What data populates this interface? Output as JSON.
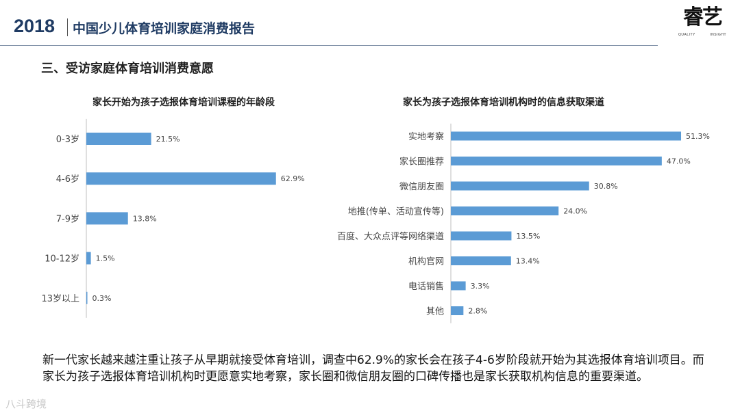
{
  "header": {
    "year": "2018",
    "report_title": "中国少儿体育培训家庭消费报告",
    "logo_mark": "睿艺",
    "logo_sub_left": "QUALITY",
    "logo_sub_right": "INSIGHT"
  },
  "section_title": "三、受访家庭体育培训消费意愿",
  "chart_data": [
    {
      "type": "bar",
      "orientation": "horizontal",
      "title": "家长开始为孩子选报体育培训课程的年龄段",
      "categories": [
        "0-3岁",
        "4-6岁",
        "7-9岁",
        "10-12岁",
        "13岁以上"
      ],
      "values": [
        21.5,
        62.9,
        13.8,
        1.5,
        0.3
      ],
      "value_labels": [
        "21.5%",
        "62.9%",
        "13.8%",
        "1.5%",
        "0.3%"
      ],
      "unit": "%",
      "color": "#5b9bd5"
    },
    {
      "type": "bar",
      "orientation": "horizontal",
      "title": "家长为孩子选报体育培训机构时的信息获取渠道",
      "categories": [
        "实地考察",
        "家长圈推荐",
        "微信朋友圈",
        "地推(传单、活动宣传等)",
        "百度、大众点评等网络渠道",
        "机构官网",
        "电话销售",
        "其他"
      ],
      "values": [
        51.3,
        47.0,
        30.8,
        24.0,
        13.5,
        13.4,
        3.3,
        2.8
      ],
      "value_labels": [
        "51.3%",
        "47.0%",
        "30.8%",
        "24.0%",
        "13.5%",
        "13.4%",
        "3.3%",
        "2.8%"
      ],
      "unit": "%",
      "color": "#5b9bd5"
    }
  ],
  "summary": "新一代家长越来越注重让孩子从早期就接受体育培训，调查中62.9%的家长会在孩子4-6岁阶段就开始为其选报体育培训项目。而家长为孩子选报体育培训机构时更愿意实地考察，家长圈和微信朋友圈的口碑传播也是家长获取机构信息的重要渠道。",
  "watermark": "八斗跨境"
}
